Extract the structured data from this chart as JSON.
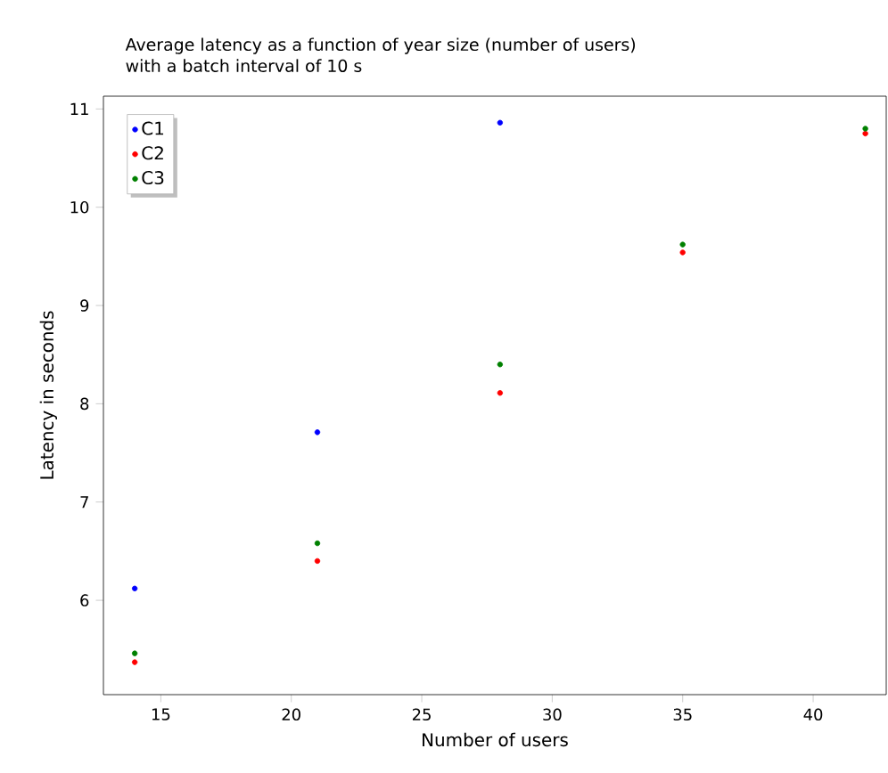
{
  "chart_data": {
    "type": "scatter",
    "title": "Average latency as a function of year size (number of users) with a batch interval of 10 s",
    "xlabel": "Number of users",
    "ylabel": "Latency in seconds",
    "xlim": [
      12.8,
      42.8
    ],
    "ylim": [
      5.04,
      11.13
    ],
    "xticks": [
      15,
      20,
      25,
      30,
      35,
      40
    ],
    "yticks": [
      6,
      7,
      8,
      9,
      10,
      11
    ],
    "legend": "top left",
    "marker": "circle",
    "grid": false,
    "series": [
      {
        "name": "C1",
        "color": "#0000ff",
        "x": [
          14,
          21,
          28
        ],
        "values": [
          6.12,
          7.71,
          10.86
        ]
      },
      {
        "name": "C2",
        "color": "#ff0000",
        "x": [
          14,
          21,
          28,
          35,
          42
        ],
        "values": [
          5.37,
          6.4,
          8.11,
          9.54,
          10.75
        ]
      },
      {
        "name": "C3",
        "color": "#008000",
        "x": [
          14,
          21,
          28,
          35,
          42
        ],
        "values": [
          5.46,
          6.58,
          8.4,
          9.62,
          10.8
        ]
      }
    ]
  }
}
